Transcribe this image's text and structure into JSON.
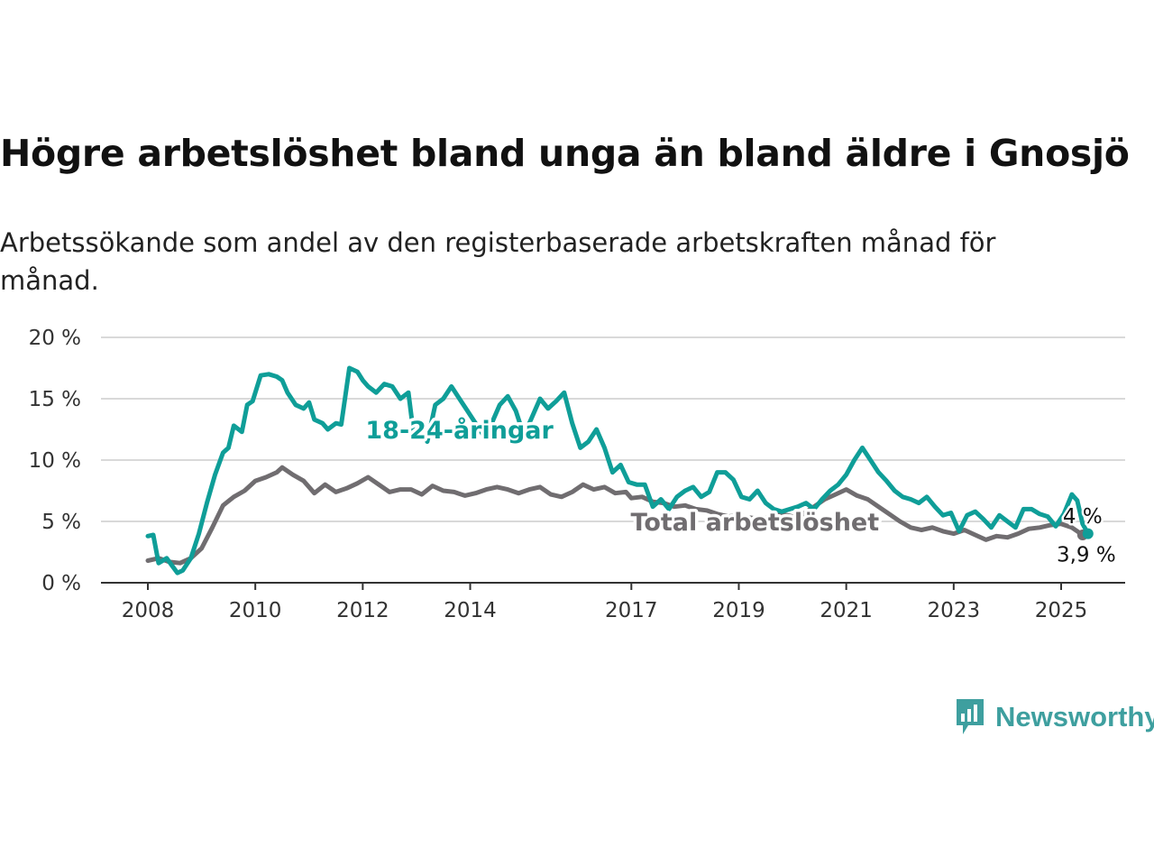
{
  "title": "Högre arbetslöshet bland unga än bland äldre i Gnosjö",
  "subtitle": "Arbetssökande som andel av den registerbaserade arbetskraften månad för månad.",
  "brand": {
    "name": "Newsworthy",
    "icon": "newsworthy-logo-icon",
    "color": "#3e9f9f"
  },
  "chart_data": {
    "type": "line",
    "x_unit": "year",
    "xlim": [
      2008,
      2025.6
    ],
    "ylim": [
      0,
      20
    ],
    "yticks": [
      0,
      5,
      10,
      15,
      20
    ],
    "ytick_labels": [
      "0 %",
      "5 %",
      "10 %",
      "15 %",
      "20 %"
    ],
    "xticks": [
      2008,
      2010,
      2012,
      2014,
      2017,
      2019,
      2021,
      2023,
      2025
    ],
    "xtick_labels": [
      "2008",
      "2010",
      "2012",
      "2014",
      "2017",
      "2019",
      "2021",
      "2023",
      "2025"
    ],
    "grid": "horizontal",
    "series": [
      {
        "name": "Total arbetslöshet",
        "color": "#706d70",
        "end_label": "3,9 %",
        "points": [
          [
            2008.0,
            1.8
          ],
          [
            2008.2,
            2.0
          ],
          [
            2008.4,
            1.7
          ],
          [
            2008.6,
            1.6
          ],
          [
            2008.8,
            2.0
          ],
          [
            2009.0,
            2.8
          ],
          [
            2009.2,
            4.5
          ],
          [
            2009.4,
            6.3
          ],
          [
            2009.6,
            7.0
          ],
          [
            2009.8,
            7.5
          ],
          [
            2010.0,
            8.3
          ],
          [
            2010.2,
            8.6
          ],
          [
            2010.4,
            9.0
          ],
          [
            2010.5,
            9.4
          ],
          [
            2010.7,
            8.8
          ],
          [
            2010.9,
            8.3
          ],
          [
            2011.1,
            7.3
          ],
          [
            2011.3,
            8.0
          ],
          [
            2011.5,
            7.4
          ],
          [
            2011.7,
            7.7
          ],
          [
            2011.9,
            8.1
          ],
          [
            2012.1,
            8.6
          ],
          [
            2012.3,
            8.0
          ],
          [
            2012.5,
            7.4
          ],
          [
            2012.7,
            7.6
          ],
          [
            2012.9,
            7.6
          ],
          [
            2013.1,
            7.2
          ],
          [
            2013.3,
            7.9
          ],
          [
            2013.5,
            7.5
          ],
          [
            2013.7,
            7.4
          ],
          [
            2013.9,
            7.1
          ],
          [
            2014.1,
            7.3
          ],
          [
            2014.3,
            7.6
          ],
          [
            2014.5,
            7.8
          ],
          [
            2014.7,
            7.6
          ],
          [
            2014.9,
            7.3
          ],
          [
            2015.1,
            7.6
          ],
          [
            2015.3,
            7.8
          ],
          [
            2015.5,
            7.2
          ],
          [
            2015.7,
            7.0
          ],
          [
            2015.9,
            7.4
          ],
          [
            2016.1,
            8.0
          ],
          [
            2016.3,
            7.6
          ],
          [
            2016.5,
            7.8
          ],
          [
            2016.7,
            7.3
          ],
          [
            2016.9,
            7.4
          ],
          [
            2017.0,
            6.9
          ],
          [
            2017.2,
            7.0
          ],
          [
            2017.4,
            6.6
          ],
          [
            2017.6,
            6.5
          ],
          [
            2017.8,
            6.2
          ],
          [
            2018.0,
            6.3
          ],
          [
            2018.2,
            6.0
          ],
          [
            2018.4,
            5.9
          ],
          [
            2018.6,
            5.6
          ],
          [
            2018.8,
            5.4
          ],
          [
            2019.0,
            5.5
          ],
          [
            2019.2,
            5.3
          ],
          [
            2019.4,
            5.2
          ],
          [
            2019.6,
            5.4
          ],
          [
            2019.8,
            5.6
          ],
          [
            2020.0,
            5.4
          ],
          [
            2020.2,
            5.6
          ],
          [
            2020.4,
            6.2
          ],
          [
            2020.6,
            6.8
          ],
          [
            2020.8,
            7.2
          ],
          [
            2021.0,
            7.6
          ],
          [
            2021.2,
            7.1
          ],
          [
            2021.4,
            6.8
          ],
          [
            2021.6,
            6.2
          ],
          [
            2021.8,
            5.6
          ],
          [
            2022.0,
            5.0
          ],
          [
            2022.2,
            4.5
          ],
          [
            2022.4,
            4.3
          ],
          [
            2022.6,
            4.5
          ],
          [
            2022.8,
            4.2
          ],
          [
            2023.0,
            4.0
          ],
          [
            2023.2,
            4.3
          ],
          [
            2023.4,
            3.9
          ],
          [
            2023.6,
            3.5
          ],
          [
            2023.8,
            3.8
          ],
          [
            2024.0,
            3.7
          ],
          [
            2024.2,
            4.0
          ],
          [
            2024.4,
            4.4
          ],
          [
            2024.6,
            4.5
          ],
          [
            2024.8,
            4.7
          ],
          [
            2025.0,
            4.8
          ],
          [
            2025.2,
            4.5
          ],
          [
            2025.4,
            3.9
          ]
        ]
      },
      {
        "name": "18-24-åringar",
        "color": "#0f9e98",
        "end_label": "4 %",
        "points": [
          [
            2008.0,
            3.8
          ],
          [
            2008.1,
            3.9
          ],
          [
            2008.2,
            1.6
          ],
          [
            2008.35,
            2.0
          ],
          [
            2008.45,
            1.4
          ],
          [
            2008.55,
            0.8
          ],
          [
            2008.65,
            1.0
          ],
          [
            2008.8,
            2.0
          ],
          [
            2008.95,
            4.0
          ],
          [
            2009.1,
            6.5
          ],
          [
            2009.25,
            8.8
          ],
          [
            2009.4,
            10.6
          ],
          [
            2009.5,
            11.0
          ],
          [
            2009.6,
            12.8
          ],
          [
            2009.75,
            12.3
          ],
          [
            2009.85,
            14.5
          ],
          [
            2009.95,
            14.8
          ],
          [
            2010.1,
            16.9
          ],
          [
            2010.25,
            17.0
          ],
          [
            2010.4,
            16.8
          ],
          [
            2010.5,
            16.5
          ],
          [
            2010.6,
            15.5
          ],
          [
            2010.75,
            14.5
          ],
          [
            2010.9,
            14.2
          ],
          [
            2011.0,
            14.7
          ],
          [
            2011.1,
            13.3
          ],
          [
            2011.25,
            13.0
          ],
          [
            2011.35,
            12.5
          ],
          [
            2011.5,
            13.0
          ],
          [
            2011.6,
            12.9
          ],
          [
            2011.75,
            17.5
          ],
          [
            2011.9,
            17.2
          ],
          [
            2012.0,
            16.5
          ],
          [
            2012.1,
            16.0
          ],
          [
            2012.25,
            15.5
          ],
          [
            2012.4,
            16.2
          ],
          [
            2012.55,
            16.0
          ],
          [
            2012.7,
            15.0
          ],
          [
            2012.85,
            15.5
          ],
          [
            2012.95,
            12.0
          ],
          [
            2013.1,
            12.5
          ],
          [
            2013.2,
            11.5
          ],
          [
            2013.35,
            14.5
          ],
          [
            2013.5,
            15.0
          ],
          [
            2013.65,
            16.0
          ],
          [
            2013.8,
            15.0
          ],
          [
            2013.95,
            14.0
          ],
          [
            2014.1,
            13.0
          ],
          [
            2014.25,
            12.0
          ],
          [
            2014.4,
            13.0
          ],
          [
            2014.55,
            14.5
          ],
          [
            2014.7,
            15.2
          ],
          [
            2014.85,
            14.0
          ],
          [
            2015.0,
            12.0
          ],
          [
            2015.15,
            13.5
          ],
          [
            2015.3,
            15.0
          ],
          [
            2015.45,
            14.2
          ],
          [
            2015.6,
            14.8
          ],
          [
            2015.75,
            15.5
          ],
          [
            2015.9,
            13.0
          ],
          [
            2016.05,
            11.0
          ],
          [
            2016.2,
            11.5
          ],
          [
            2016.35,
            12.5
          ],
          [
            2016.5,
            11.0
          ],
          [
            2016.65,
            9.0
          ],
          [
            2016.8,
            9.6
          ],
          [
            2016.95,
            8.2
          ],
          [
            2017.1,
            8.0
          ],
          [
            2017.25,
            8.0
          ],
          [
            2017.4,
            6.2
          ],
          [
            2017.55,
            6.8
          ],
          [
            2017.7,
            6.0
          ],
          [
            2017.85,
            7.0
          ],
          [
            2018.0,
            7.5
          ],
          [
            2018.15,
            7.8
          ],
          [
            2018.3,
            7.0
          ],
          [
            2018.45,
            7.4
          ],
          [
            2018.6,
            9.0
          ],
          [
            2018.75,
            9.0
          ],
          [
            2018.9,
            8.4
          ],
          [
            2019.05,
            7.0
          ],
          [
            2019.2,
            6.8
          ],
          [
            2019.35,
            7.5
          ],
          [
            2019.5,
            6.5
          ],
          [
            2019.65,
            6.0
          ],
          [
            2019.8,
            5.8
          ],
          [
            2019.95,
            6.0
          ],
          [
            2020.1,
            6.2
          ],
          [
            2020.25,
            6.5
          ],
          [
            2020.4,
            6.0
          ],
          [
            2020.55,
            6.8
          ],
          [
            2020.7,
            7.5
          ],
          [
            2020.85,
            8.0
          ],
          [
            2021.0,
            8.8
          ],
          [
            2021.15,
            10.0
          ],
          [
            2021.3,
            11.0
          ],
          [
            2021.45,
            10.0
          ],
          [
            2021.6,
            9.0
          ],
          [
            2021.75,
            8.3
          ],
          [
            2021.9,
            7.5
          ],
          [
            2022.05,
            7.0
          ],
          [
            2022.2,
            6.8
          ],
          [
            2022.35,
            6.5
          ],
          [
            2022.5,
            7.0
          ],
          [
            2022.65,
            6.2
          ],
          [
            2022.8,
            5.5
          ],
          [
            2022.95,
            5.7
          ],
          [
            2023.1,
            4.2
          ],
          [
            2023.25,
            5.5
          ],
          [
            2023.4,
            5.8
          ],
          [
            2023.55,
            5.2
          ],
          [
            2023.7,
            4.5
          ],
          [
            2023.85,
            5.5
          ],
          [
            2024.0,
            5.0
          ],
          [
            2024.15,
            4.5
          ],
          [
            2024.3,
            6.0
          ],
          [
            2024.45,
            6.0
          ],
          [
            2024.6,
            5.6
          ],
          [
            2024.75,
            5.4
          ],
          [
            2024.9,
            4.6
          ],
          [
            2025.05,
            5.6
          ],
          [
            2025.2,
            7.2
          ],
          [
            2025.3,
            6.7
          ],
          [
            2025.4,
            4.8
          ],
          [
            2025.5,
            4.0
          ]
        ]
      }
    ],
    "legend": "inline labels"
  }
}
